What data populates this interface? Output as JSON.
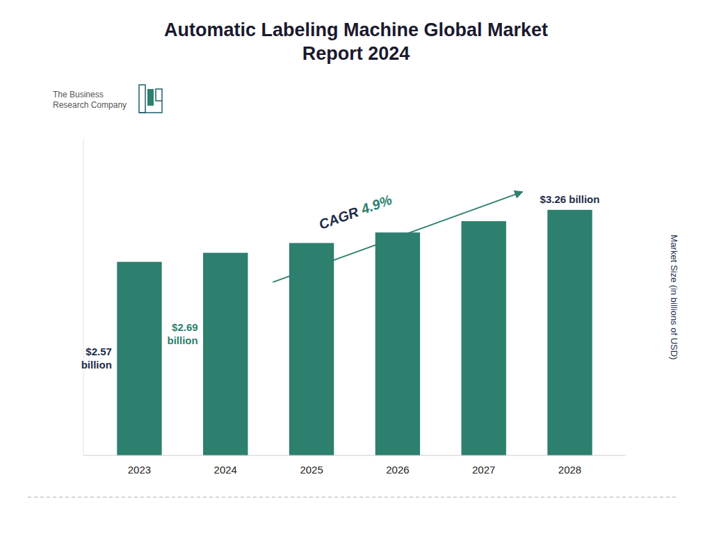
{
  "chart_data": {
    "type": "bar",
    "title": "Automatic Labeling Machine Global Market\nReport 2024",
    "ylabel": "Market Size (in billions of USD)",
    "categories": [
      "2023",
      "2024",
      "2025",
      "2026",
      "2027",
      "2028"
    ],
    "values": [
      2.57,
      2.69,
      2.82,
      2.96,
      3.11,
      3.26
    ],
    "value_labels": [
      "$2.57\nbillion",
      "$2.69\nbillion",
      null,
      null,
      null,
      "$3.26 billion"
    ],
    "color": "#2d7f6e",
    "ylim": [
      0,
      4.2
    ],
    "yticks": [],
    "tick_labels": "x",
    "grid": false,
    "annotations": [
      {
        "text": "CAGR ",
        "color": "#1e2d4a"
      },
      {
        "text": "4.9%",
        "color": "#2d7f6e"
      },
      {
        "text": "The Business\nResearch Company"
      }
    ]
  }
}
